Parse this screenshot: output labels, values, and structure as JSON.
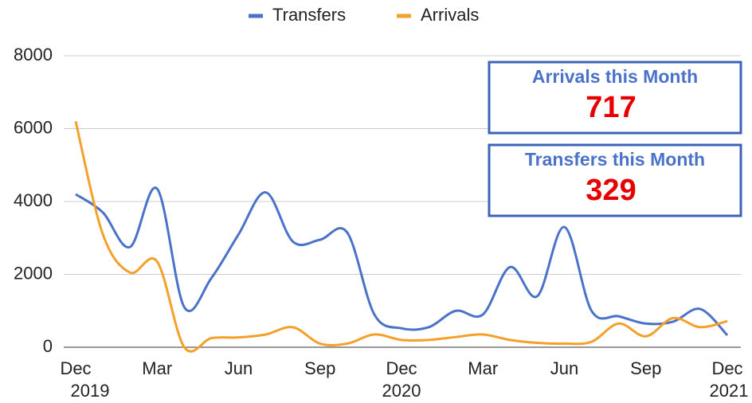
{
  "chart_data": {
    "type": "line",
    "categories": [
      "Dec",
      null,
      null,
      "Mar",
      null,
      null,
      "Jun",
      null,
      null,
      "Sep",
      null,
      null,
      "Dec",
      null,
      null,
      "Mar",
      null,
      null,
      "Jun",
      null,
      null,
      "Sep",
      null,
      null,
      "Dec"
    ],
    "years": [
      "2019",
      null,
      null,
      null,
      null,
      null,
      null,
      null,
      null,
      null,
      null,
      null,
      "2020",
      null,
      null,
      null,
      null,
      null,
      null,
      null,
      null,
      null,
      null,
      null,
      "2021"
    ],
    "series": [
      {
        "name": "Transfers",
        "color": "#4a72c8",
        "values": [
          4200,
          3700,
          2750,
          4350,
          1100,
          1900,
          3100,
          4250,
          2900,
          2950,
          3150,
          900,
          520,
          550,
          1000,
          900,
          2200,
          1400,
          3300,
          1000,
          850,
          650,
          700,
          1050,
          329
        ]
      },
      {
        "name": "Arrivals",
        "color": "#f4a02a",
        "values": [
          6200,
          3100,
          2050,
          2350,
          0,
          250,
          270,
          350,
          550,
          100,
          100,
          350,
          200,
          200,
          280,
          350,
          200,
          120,
          100,
          150,
          650,
          300,
          800,
          550,
          717
        ]
      }
    ],
    "ylim": [
      0,
      8000
    ],
    "yticks": [
      0,
      2000,
      4000,
      6000,
      8000
    ],
    "grid": true,
    "legend": "top",
    "annotations": [
      {
        "title": "Arrivals this Month",
        "value": "717"
      },
      {
        "title": "Transfers this Month",
        "value": "329"
      }
    ]
  }
}
